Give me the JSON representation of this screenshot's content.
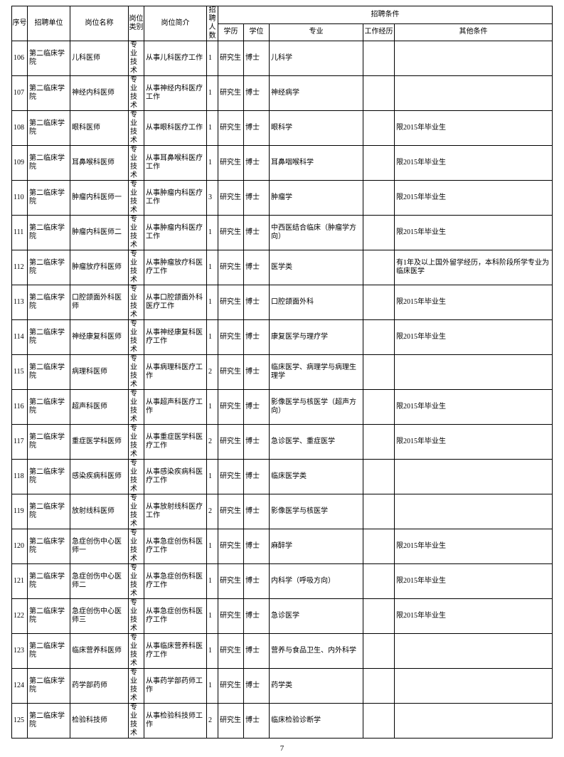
{
  "headers": {
    "xh": "序号",
    "dw": "招聘单位",
    "gw": "岗位名称",
    "lb": "岗位\n类别",
    "jj": "岗位简介",
    "rs": "招聘\n人数",
    "top": "招聘条件",
    "xl": "学历",
    "xw": "学位",
    "zy": "专业",
    "jl": "工作经历",
    "qt": "其他条件"
  },
  "rows": [
    {
      "xh": "106",
      "dw": "第二临床学院",
      "gw": "儿科医师",
      "lb": "专业\n技术",
      "jj": "从事儿科医疗工作",
      "rs": "1",
      "xl": "研究生",
      "xw": "博士",
      "zy": "儿科学",
      "jl": "",
      "qt": ""
    },
    {
      "xh": "107",
      "dw": "第二临床学院",
      "gw": "神经内科医师",
      "lb": "专业\n技术",
      "jj": "从事神经内科医疗工作",
      "rs": "1",
      "xl": "研究生",
      "xw": "博士",
      "zy": "神经病学",
      "jl": "",
      "qt": ""
    },
    {
      "xh": "108",
      "dw": "第二临床学院",
      "gw": "眼科医师",
      "lb": "专业\n技术",
      "jj": "从事眼科医疗工作",
      "rs": "1",
      "xl": "研究生",
      "xw": "博士",
      "zy": "眼科学",
      "jl": "",
      "qt": "限2015年毕业生"
    },
    {
      "xh": "109",
      "dw": "第二临床学院",
      "gw": "耳鼻喉科医师",
      "lb": "专业\n技术",
      "jj": "从事耳鼻喉科医疗工作",
      "rs": "1",
      "xl": "研究生",
      "xw": "博士",
      "zy": "耳鼻咽喉科学",
      "jl": "",
      "qt": "限2015年毕业生"
    },
    {
      "xh": "110",
      "dw": "第二临床学院",
      "gw": "肿瘤内科医师一",
      "lb": "专业\n技术",
      "jj": "从事肿瘤内科医疗工作",
      "rs": "3",
      "xl": "研究生",
      "xw": "博士",
      "zy": "肿瘤学",
      "jl": "",
      "qt": "限2015年毕业生"
    },
    {
      "xh": "111",
      "dw": "第二临床学院",
      "gw": "肿瘤内科医师二",
      "lb": "专业\n技术",
      "jj": "从事肿瘤内科医疗工作",
      "rs": "1",
      "xl": "研究生",
      "xw": "博士",
      "zy": "中西医结合临床（肿瘤学方向）",
      "jl": "",
      "qt": "限2015年毕业生"
    },
    {
      "xh": "112",
      "dw": "第二临床学院",
      "gw": "肿瘤放疗科医师",
      "lb": "专业\n技术",
      "jj": "从事肿瘤放疗科医疗工作",
      "rs": "1",
      "xl": "研究生",
      "xw": "博士",
      "zy": "医学类",
      "jl": "",
      "qt": "有1年及以上国外留学经历，本科阶段所学专业为临床医学"
    },
    {
      "xh": "113",
      "dw": "第二临床学院",
      "gw": "口腔颌面外科医师",
      "lb": "专业\n技术",
      "jj": "从事口腔颌面外科医疗工作",
      "rs": "1",
      "xl": "研究生",
      "xw": "博士",
      "zy": "口腔颌面外科",
      "jl": "",
      "qt": "限2015年毕业生"
    },
    {
      "xh": "114",
      "dw": "第二临床学院",
      "gw": "神经康复科医师",
      "lb": "专业\n技术",
      "jj": "从事神经康复科医疗工作",
      "rs": "1",
      "xl": "研究生",
      "xw": "博士",
      "zy": "康复医学与理疗学",
      "jl": "",
      "qt": "限2015年毕业生"
    },
    {
      "xh": "115",
      "dw": "第二临床学院",
      "gw": "病理科医师",
      "lb": "专业\n技术",
      "jj": "从事病理科医疗工作",
      "rs": "2",
      "xl": "研究生",
      "xw": "博士",
      "zy": "临床医学、病理学与病理生理学",
      "jl": "",
      "qt": ""
    },
    {
      "xh": "116",
      "dw": "第二临床学院",
      "gw": "超声科医师",
      "lb": "专业\n技术",
      "jj": "从事超声科医疗工作",
      "rs": "1",
      "xl": "研究生",
      "xw": "博士",
      "zy": "影像医学与核医学（超声方向）",
      "jl": "",
      "qt": "限2015年毕业生"
    },
    {
      "xh": "117",
      "dw": "第二临床学院",
      "gw": "重症医学科医师",
      "lb": "专业\n技术",
      "jj": "从事重症医学科医疗工作",
      "rs": "2",
      "xl": "研究生",
      "xw": "博士",
      "zy": "急诊医学、重症医学",
      "jl": "",
      "qt": "限2015年毕业生"
    },
    {
      "xh": "118",
      "dw": "第二临床学院",
      "gw": "感染疾病科医师",
      "lb": "专业\n技术",
      "jj": "从事感染疾病科医疗工作",
      "rs": "1",
      "xl": "研究生",
      "xw": "博士",
      "zy": "临床医学类",
      "jl": "",
      "qt": ""
    },
    {
      "xh": "119",
      "dw": "第二临床学院",
      "gw": "放射线科医师",
      "lb": "专业\n技术",
      "jj": "从事放射线科医疗工作",
      "rs": "2",
      "xl": "研究生",
      "xw": "博士",
      "zy": "影像医学与核医学",
      "jl": "",
      "qt": ""
    },
    {
      "xh": "120",
      "dw": "第二临床学院",
      "gw": "急症创伤中心医师一",
      "lb": "专业\n技术",
      "jj": "从事急症创伤科医疗工作",
      "rs": "1",
      "xl": "研究生",
      "xw": "博士",
      "zy": "麻醉学",
      "jl": "",
      "qt": "限2015年毕业生"
    },
    {
      "xh": "121",
      "dw": "第二临床学院",
      "gw": "急症创伤中心医师二",
      "lb": "专业\n技术",
      "jj": "从事急症创伤科医疗工作",
      "rs": "1",
      "xl": "研究生",
      "xw": "博士",
      "zy": "内科学（呼吸方向）",
      "jl": "",
      "qt": "限2015年毕业生"
    },
    {
      "xh": "122",
      "dw": "第二临床学院",
      "gw": "急症创伤中心医师三",
      "lb": "专业\n技术",
      "jj": "从事急症创伤科医疗工作",
      "rs": "1",
      "xl": "研究生",
      "xw": "博士",
      "zy": "急诊医学",
      "jl": "",
      "qt": "限2015年毕业生"
    },
    {
      "xh": "123",
      "dw": "第二临床学院",
      "gw": "临床营养科医师",
      "lb": "专业\n技术",
      "jj": "从事临床营养科医疗工作",
      "rs": "1",
      "xl": "研究生",
      "xw": "博士",
      "zy": "营养与食品卫生、内外科学",
      "jl": "",
      "qt": ""
    },
    {
      "xh": "124",
      "dw": "第二临床学院",
      "gw": "药学部药师",
      "lb": "专业\n技术",
      "jj": "从事药学部药师工作",
      "rs": "1",
      "xl": "研究生",
      "xw": "博士",
      "zy": "药学类",
      "jl": "",
      "qt": ""
    },
    {
      "xh": "125",
      "dw": "第二临床学院",
      "gw": "检验科技师",
      "lb": "专业\n技术",
      "jj": "从事检验科技师工作",
      "rs": "2",
      "xl": "研究生",
      "xw": "博士",
      "zy": "临床检验诊断学",
      "jl": "",
      "qt": ""
    }
  ],
  "page_num": "7"
}
